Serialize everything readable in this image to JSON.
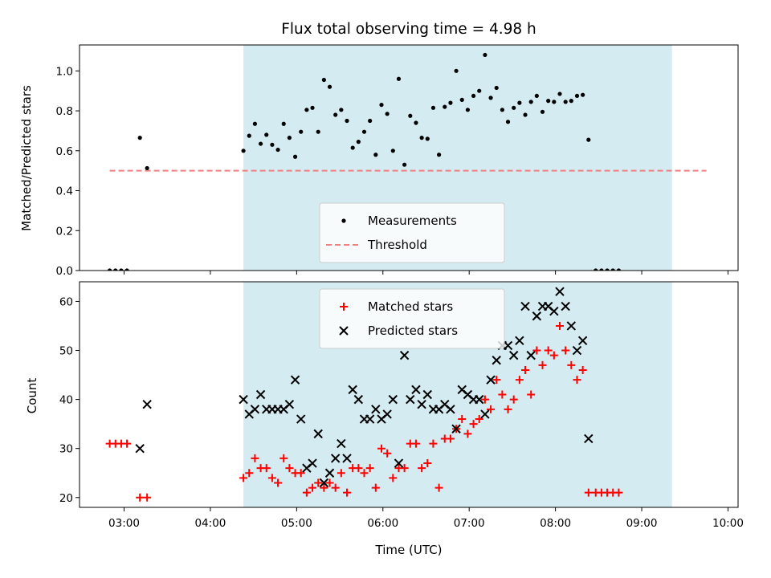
{
  "chart_data": {
    "title": "Flux total observing time = 4.98 h",
    "xlabel": "Time (UTC)",
    "x_ticks": [
      "03:00",
      "04:00",
      "05:00",
      "06:00",
      "07:00",
      "08:00",
      "09:00",
      "10:00"
    ],
    "x_range": [
      "02:29",
      "10:07"
    ],
    "shaded_span": [
      "04:23",
      "09:21"
    ],
    "shaded_color": "#d4ebf1",
    "panels": [
      {
        "type": "scatter",
        "ylabel": "Matched/Predicted stars",
        "ylim": [
          0,
          1.13
        ],
        "y_ticks": [
          "0.0",
          "0.2",
          "0.4",
          "0.6",
          "0.8",
          "1.0"
        ],
        "legend_position": "lower-center",
        "threshold": {
          "name": "Threshold",
          "value": 0.5,
          "x_from": "02:50",
          "x_to": "09:45",
          "color": "#f08080"
        },
        "series": [
          {
            "name": "Measurements",
            "marker": "dot",
            "color": "#000000",
            "points": [
              [
                "02:50",
                0.0
              ],
              [
                "02:54",
                0.0
              ],
              [
                "02:58",
                0.0
              ],
              [
                "03:02",
                0.0
              ],
              [
                "03:11",
                0.665
              ],
              [
                "03:16",
                0.513
              ],
              [
                "04:23",
                0.6
              ],
              [
                "04:27",
                0.675
              ],
              [
                "04:31",
                0.735
              ],
              [
                "04:35",
                0.635
              ],
              [
                "04:39",
                0.68
              ],
              [
                "04:43",
                0.63
              ],
              [
                "04:47",
                0.605
              ],
              [
                "04:51",
                0.735
              ],
              [
                "04:55",
                0.665
              ],
              [
                "04:59",
                0.57
              ],
              [
                "05:03",
                0.695
              ],
              [
                "05:07",
                0.805
              ],
              [
                "05:11",
                0.815
              ],
              [
                "05:15",
                0.695
              ],
              [
                "05:19",
                0.955
              ],
              [
                "05:23",
                0.92
              ],
              [
                "05:27",
                0.78
              ],
              [
                "05:31",
                0.805
              ],
              [
                "05:35",
                0.75
              ],
              [
                "05:39",
                0.615
              ],
              [
                "05:43",
                0.645
              ],
              [
                "05:47",
                0.695
              ],
              [
                "05:51",
                0.75
              ],
              [
                "05:55",
                0.58
              ],
              [
                "05:59",
                0.83
              ],
              [
                "06:03",
                0.785
              ],
              [
                "06:07",
                0.6
              ],
              [
                "06:11",
                0.96
              ],
              [
                "06:15",
                0.53
              ],
              [
                "06:19",
                0.775
              ],
              [
                "06:23",
                0.74
              ],
              [
                "06:27",
                0.665
              ],
              [
                "06:31",
                0.66
              ],
              [
                "06:35",
                0.815
              ],
              [
                "06:39",
                0.58
              ],
              [
                "06:43",
                0.82
              ],
              [
                "06:47",
                0.84
              ],
              [
                "06:51",
                1.0
              ],
              [
                "06:55",
                0.855
              ],
              [
                "06:59",
                0.805
              ],
              [
                "07:03",
                0.875
              ],
              [
                "07:07",
                0.9
              ],
              [
                "07:11",
                1.08
              ],
              [
                "07:15",
                0.865
              ],
              [
                "07:19",
                0.915
              ],
              [
                "07:23",
                0.805
              ],
              [
                "07:27",
                0.745
              ],
              [
                "07:31",
                0.815
              ],
              [
                "07:35",
                0.84
              ],
              [
                "07:39",
                0.78
              ],
              [
                "07:43",
                0.845
              ],
              [
                "07:47",
                0.875
              ],
              [
                "07:51",
                0.795
              ],
              [
                "07:55",
                0.85
              ],
              [
                "07:59",
                0.845
              ],
              [
                "08:03",
                0.885
              ],
              [
                "08:07",
                0.845
              ],
              [
                "08:11",
                0.85
              ],
              [
                "08:15",
                0.875
              ],
              [
                "08:19",
                0.88
              ],
              [
                "08:23",
                0.655
              ],
              [
                "08:28",
                0.0
              ],
              [
                "08:32",
                0.0
              ],
              [
                "08:36",
                0.0
              ],
              [
                "08:40",
                0.0
              ],
              [
                "08:44",
                0.0
              ]
            ]
          }
        ]
      },
      {
        "type": "scatter",
        "ylabel": "Count",
        "ylim": [
          18,
          64
        ],
        "y_ticks": [
          "20",
          "30",
          "40",
          "50",
          "60"
        ],
        "legend_position": "upper-center",
        "series": [
          {
            "name": "Matched stars",
            "marker": "plus",
            "color": "#ff0000",
            "points": [
              [
                "02:50",
                31
              ],
              [
                "02:54",
                31
              ],
              [
                "02:58",
                31
              ],
              [
                "03:02",
                31
              ],
              [
                "03:11",
                20
              ],
              [
                "03:16",
                20
              ],
              [
                "04:23",
                24
              ],
              [
                "04:27",
                25
              ],
              [
                "04:31",
                28
              ],
              [
                "04:35",
                26
              ],
              [
                "04:39",
                26
              ],
              [
                "04:43",
                24
              ],
              [
                "04:47",
                23
              ],
              [
                "04:51",
                28
              ],
              [
                "04:55",
                26
              ],
              [
                "04:59",
                25
              ],
              [
                "05:03",
                25
              ],
              [
                "05:07",
                21
              ],
              [
                "05:11",
                22
              ],
              [
                "05:15",
                23
              ],
              [
                "05:19",
                22
              ],
              [
                "05:23",
                23
              ],
              [
                "05:27",
                22
              ],
              [
                "05:31",
                25
              ],
              [
                "05:35",
                21
              ],
              [
                "05:39",
                26
              ],
              [
                "05:43",
                26
              ],
              [
                "05:47",
                25
              ],
              [
                "05:51",
                26
              ],
              [
                "05:55",
                22
              ],
              [
                "05:59",
                30
              ],
              [
                "06:03",
                29
              ],
              [
                "06:07",
                24
              ],
              [
                "06:11",
                26
              ],
              [
                "06:15",
                26
              ],
              [
                "06:19",
                31
              ],
              [
                "06:23",
                31
              ],
              [
                "06:27",
                26
              ],
              [
                "06:31",
                27
              ],
              [
                "06:35",
                31
              ],
              [
                "06:39",
                22
              ],
              [
                "06:43",
                32
              ],
              [
                "06:47",
                32
              ],
              [
                "06:51",
                34
              ],
              [
                "06:55",
                36
              ],
              [
                "06:59",
                33
              ],
              [
                "07:03",
                35
              ],
              [
                "07:07",
                36
              ],
              [
                "07:11",
                40
              ],
              [
                "07:15",
                38
              ],
              [
                "07:19",
                44
              ],
              [
                "07:23",
                41
              ],
              [
                "07:27",
                38
              ],
              [
                "07:31",
                40
              ],
              [
                "07:35",
                44
              ],
              [
                "07:39",
                46
              ],
              [
                "07:43",
                41
              ],
              [
                "07:47",
                50
              ],
              [
                "07:51",
                47
              ],
              [
                "07:55",
                50
              ],
              [
                "07:59",
                49
              ],
              [
                "08:03",
                55
              ],
              [
                "08:07",
                50
              ],
              [
                "08:11",
                47
              ],
              [
                "08:15",
                44
              ],
              [
                "08:19",
                46
              ],
              [
                "08:23",
                21
              ],
              [
                "08:28",
                21
              ],
              [
                "08:32",
                21
              ],
              [
                "08:36",
                21
              ],
              [
                "08:40",
                21
              ],
              [
                "08:44",
                21
              ]
            ]
          },
          {
            "name": "Predicted stars",
            "marker": "x",
            "color": "#000000",
            "points": [
              [
                "03:11",
                30
              ],
              [
                "03:16",
                39
              ],
              [
                "04:23",
                40
              ],
              [
                "04:27",
                37
              ],
              [
                "04:31",
                38
              ],
              [
                "04:35",
                41
              ],
              [
                "04:39",
                38
              ],
              [
                "04:43",
                38
              ],
              [
                "04:47",
                38
              ],
              [
                "04:51",
                38
              ],
              [
                "04:55",
                39
              ],
              [
                "04:59",
                44
              ],
              [
                "05:03",
                36
              ],
              [
                "05:07",
                26
              ],
              [
                "05:11",
                27
              ],
              [
                "05:15",
                33
              ],
              [
                "05:19",
                23
              ],
              [
                "05:23",
                25
              ],
              [
                "05:27",
                28
              ],
              [
                "05:31",
                31
              ],
              [
                "05:35",
                28
              ],
              [
                "05:39",
                42
              ],
              [
                "05:43",
                40
              ],
              [
                "05:47",
                36
              ],
              [
                "05:51",
                36
              ],
              [
                "05:55",
                38
              ],
              [
                "05:59",
                36
              ],
              [
                "06:03",
                37
              ],
              [
                "06:07",
                40
              ],
              [
                "06:11",
                27
              ],
              [
                "06:15",
                49
              ],
              [
                "06:19",
                40
              ],
              [
                "06:23",
                42
              ],
              [
                "06:27",
                39
              ],
              [
                "06:31",
                41
              ],
              [
                "06:35",
                38
              ],
              [
                "06:39",
                38
              ],
              [
                "06:43",
                39
              ],
              [
                "06:47",
                38
              ],
              [
                "06:51",
                34
              ],
              [
                "06:55",
                42
              ],
              [
                "06:59",
                41
              ],
              [
                "07:03",
                40
              ],
              [
                "07:07",
                40
              ],
              [
                "07:11",
                37
              ],
              [
                "07:15",
                44
              ],
              [
                "07:19",
                48
              ],
              [
                "07:23",
                51
              ],
              [
                "07:27",
                51
              ],
              [
                "07:31",
                49
              ],
              [
                "07:35",
                52
              ],
              [
                "07:39",
                59
              ],
              [
                "07:43",
                49
              ],
              [
                "07:47",
                57
              ],
              [
                "07:51",
                59
              ],
              [
                "07:55",
                59
              ],
              [
                "07:59",
                58
              ],
              [
                "08:03",
                62
              ],
              [
                "08:07",
                59
              ],
              [
                "08:11",
                55
              ],
              [
                "08:15",
                50
              ],
              [
                "08:19",
                52
              ],
              [
                "08:23",
                32
              ]
            ]
          }
        ]
      }
    ]
  }
}
